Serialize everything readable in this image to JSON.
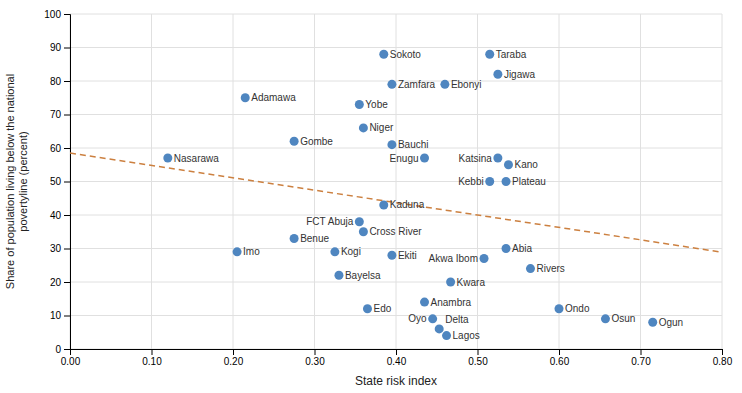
{
  "chart_data": {
    "type": "scatter",
    "xlabel": "State risk index",
    "ylabel": "Share of population living below the national\npovertyline (percent)",
    "labels": [
      "Sokoto",
      "Taraba",
      "Jigawa",
      "Zamfara",
      "Ebonyi",
      "Adamawa",
      "Yobe",
      "Katsina",
      "Niger",
      "Kano",
      "Gombe",
      "Bauchi",
      "Nasarawa",
      "Enugu",
      "Kebbi",
      "Plateau",
      "Kaduna",
      "FCT Abuja",
      "Cross River",
      "Abia",
      "Benue",
      "Imo",
      "Kogi",
      "Ekiti",
      "Akwa Ibom",
      "Rivers",
      "Bayelsa",
      "Kwara",
      "Anambra",
      "Edo",
      "Ondo",
      "Oyo",
      "Delta",
      "Lagos",
      "Osun",
      "Ogun"
    ],
    "x": [
      0.385,
      0.515,
      0.525,
      0.395,
      0.46,
      0.215,
      0.355,
      0.525,
      0.36,
      0.538,
      0.275,
      0.395,
      0.12,
      0.435,
      0.515,
      0.535,
      0.385,
      0.355,
      0.36,
      0.535,
      0.275,
      0.205,
      0.325,
      0.395,
      0.508,
      0.565,
      0.33,
      0.467,
      0.435,
      0.365,
      0.6,
      0.445,
      0.453,
      0.462,
      0.657,
      0.715
    ],
    "values": [
      88,
      88,
      82,
      79,
      79,
      75,
      73,
      57,
      66,
      55,
      62,
      61,
      57,
      57,
      50,
      50,
      43,
      38,
      35,
      30,
      33,
      29,
      29,
      28,
      27,
      24,
      22,
      20,
      14,
      12,
      12,
      9,
      6,
      4,
      9,
      8
    ],
    "color": "#4f86c0",
    "trendline": {
      "x": [
        0.0,
        0.8
      ],
      "values": [
        58.5,
        28.9
      ],
      "color": "#cc8040",
      "line_style": "dashed"
    },
    "xlim": [
      0.0,
      0.8
    ],
    "ylim": [
      0,
      100
    ],
    "xticks": [
      {
        "value": 0.0,
        "label": "0.00"
      },
      {
        "value": 0.1,
        "label": "0.10"
      },
      {
        "value": 0.2,
        "label": "0.20"
      },
      {
        "value": 0.3,
        "label": "0.30"
      },
      {
        "value": 0.4,
        "label": "0.40"
      },
      {
        "value": 0.5,
        "label": "0.50"
      },
      {
        "value": 0.6,
        "label": "0.60"
      },
      {
        "value": 0.7,
        "label": "0.70"
      },
      {
        "value": 0.8,
        "label": "0.80"
      }
    ],
    "yticks": [
      0,
      10,
      20,
      30,
      40,
      50,
      60,
      70,
      80,
      90,
      100
    ],
    "grid": true
  }
}
